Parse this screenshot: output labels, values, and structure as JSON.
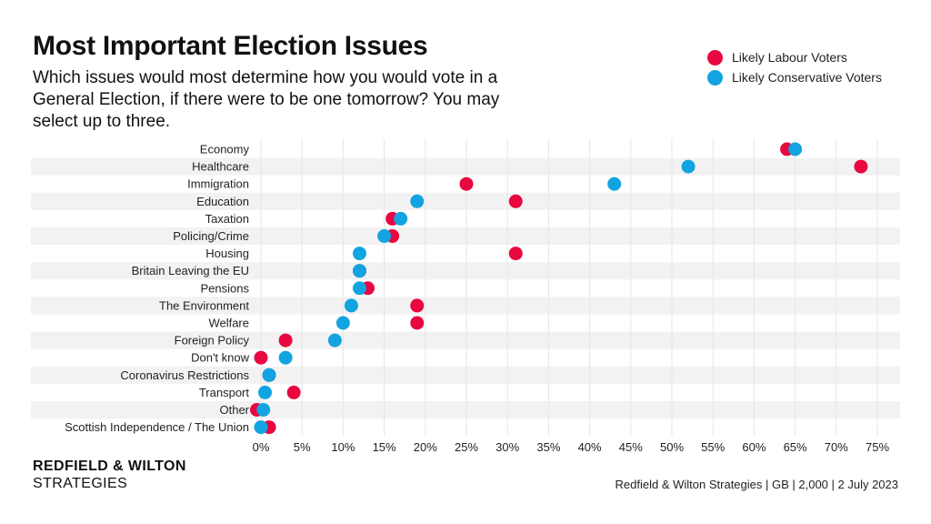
{
  "colors": {
    "labour": "#e8073f",
    "conservative": "#12a4e0",
    "band": "#f2f2f2",
    "grid": "#e6e6e6"
  },
  "header": {
    "title": "Most Important Election Issues",
    "subtitle": "Which issues would most determine how you would vote in a General Election, if there were to be one tomorrow? You may select up to three."
  },
  "footer": {
    "brand_name": "REDFIELD & WILTON",
    "brand_sub": "STRATEGIES",
    "source": "Redfield & Wilton Strategies | GB | 2,000 | 2 July 2023"
  },
  "chart_data": {
    "type": "scatter",
    "categories": [
      "Economy",
      "Healthcare",
      "Immigration",
      "Education",
      "Taxation",
      "Policing/Crime",
      "Housing",
      "Britain Leaving the EU",
      "Pensions",
      "The Environment",
      "Welfare",
      "Foreign Policy",
      "Don't know",
      "Coronavirus Restrictions",
      "Transport",
      "Other",
      "Scottish Independence / The Union"
    ],
    "series": [
      {
        "name": "Likely Labour Voters",
        "color": "#e8073f",
        "values": [
          64,
          73,
          25,
          31,
          16,
          16,
          31,
          12,
          13,
          19,
          19,
          3,
          0,
          1,
          4,
          -0.5,
          1
        ]
      },
      {
        "name": "Likely Conservative Voters",
        "color": "#12a4e0",
        "values": [
          65,
          52,
          43,
          19,
          17,
          15,
          12,
          12,
          12,
          11,
          10,
          9,
          3,
          1,
          0.5,
          0.3,
          0
        ]
      }
    ],
    "x_ticks": [
      "0%",
      "5%",
      "10%",
      "15%",
      "20%",
      "25%",
      "30%",
      "35%",
      "40%",
      "45%",
      "50%",
      "55%",
      "60%",
      "65%",
      "70%",
      "75%"
    ],
    "xlim": [
      0,
      75
    ],
    "grid": true,
    "legend_position": "top-right",
    "xlabel": "",
    "ylabel": ""
  }
}
